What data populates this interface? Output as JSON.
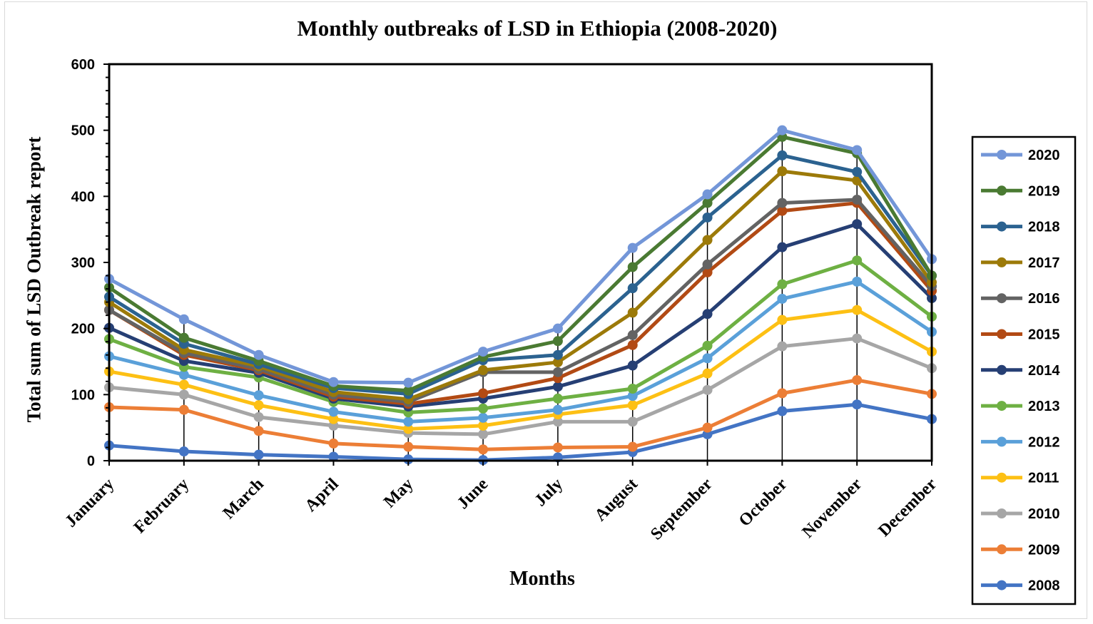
{
  "chart_data": {
    "type": "line",
    "title": "Monthly outbreaks of LSD in Ethiopia (2008-2020)",
    "xlabel": "Months",
    "ylabel": "Total sum of LSD Outbreak report",
    "ylim": [
      0,
      600
    ],
    "yticks": [
      0,
      100,
      200,
      300,
      400,
      500,
      600
    ],
    "categories": [
      "January",
      "February",
      "March",
      "April",
      "May",
      "June",
      "July",
      "August",
      "September",
      "October",
      "November",
      "December"
    ],
    "legend_position": "right",
    "series": [
      {
        "name": "2020",
        "color": "#7396d8",
        "values": [
          275,
          214,
          160,
          119,
          118,
          165,
          200,
          322,
          403,
          500,
          470,
          305
        ]
      },
      {
        "name": "2019",
        "color": "#4a7a32",
        "values": [
          262,
          186,
          151,
          113,
          106,
          157,
          181,
          293,
          390,
          490,
          465,
          280
        ]
      },
      {
        "name": "2018",
        "color": "#2b6290",
        "values": [
          248,
          177,
          146,
          110,
          101,
          152,
          160,
          261,
          368,
          462,
          437,
          280
        ]
      },
      {
        "name": "2017",
        "color": "#9c7a09",
        "values": [
          240,
          168,
          143,
          104,
          93,
          137,
          149,
          224,
          334,
          438,
          424,
          270
        ]
      },
      {
        "name": "2016",
        "color": "#636363",
        "values": [
          228,
          163,
          139,
          100,
          89,
          134,
          134,
          190,
          297,
          390,
          395,
          264
        ]
      },
      {
        "name": "2015",
        "color": "#b24a14",
        "values": [
          228,
          160,
          137,
          97,
          86,
          102,
          125,
          175,
          285,
          378,
          390,
          257
        ]
      },
      {
        "name": "2014",
        "color": "#263f74",
        "values": [
          201,
          151,
          133,
          94,
          82,
          94,
          112,
          144,
          222,
          323,
          358,
          246
        ]
      },
      {
        "name": "2013",
        "color": "#6eb043",
        "values": [
          184,
          142,
          126,
          89,
          73,
          79,
          94,
          109,
          174,
          267,
          303,
          218
        ]
      },
      {
        "name": "2012",
        "color": "#5aa0d9",
        "values": [
          158,
          130,
          99,
          74,
          59,
          65,
          77,
          98,
          155,
          245,
          271,
          195
        ]
      },
      {
        "name": "2011",
        "color": "#fdc014",
        "values": [
          135,
          115,
          84,
          63,
          48,
          53,
          70,
          84,
          132,
          213,
          228,
          165
        ]
      },
      {
        "name": "2010",
        "color": "#a6a6a6",
        "values": [
          111,
          100,
          66,
          53,
          42,
          40,
          59,
          59,
          107,
          173,
          185,
          140
        ]
      },
      {
        "name": "2009",
        "color": "#ec7e36",
        "values": [
          81,
          77,
          45,
          26,
          21,
          17,
          20,
          21,
          50,
          102,
          122,
          101
        ]
      },
      {
        "name": "2008",
        "color": "#4374c4",
        "values": [
          23,
          14,
          9,
          6,
          2,
          1,
          5,
          13,
          40,
          75,
          85,
          63
        ]
      }
    ]
  }
}
